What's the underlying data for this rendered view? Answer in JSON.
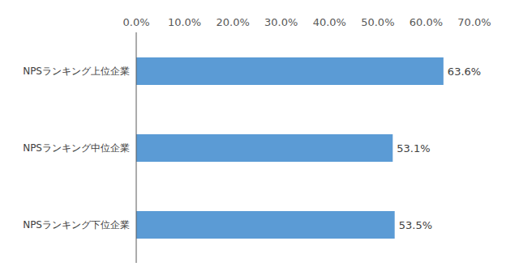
{
  "chart_data": {
    "type": "bar",
    "orientation": "horizontal",
    "categories": [
      "NPSランキング上位企業",
      "NPSランキング中位企業",
      "NPSランキング下位企業"
    ],
    "values": [
      63.6,
      53.1,
      53.5
    ],
    "value_labels": [
      "63.6%",
      "53.1%",
      "53.5%"
    ],
    "data_labels": true,
    "color": "#5b9bd5",
    "xlim": [
      0,
      70
    ],
    "xticks": [
      {
        "value": 0,
        "label": "0.0%"
      },
      {
        "value": 10,
        "label": "10.0%"
      },
      {
        "value": 20,
        "label": "20.0%"
      },
      {
        "value": 30,
        "label": "30.0%"
      },
      {
        "value": 40,
        "label": "40.0%"
      },
      {
        "value": 50,
        "label": "50.0%"
      },
      {
        "value": 60,
        "label": "60.0%"
      },
      {
        "value": 70,
        "label": "70.0%"
      }
    ],
    "grid": false
  }
}
